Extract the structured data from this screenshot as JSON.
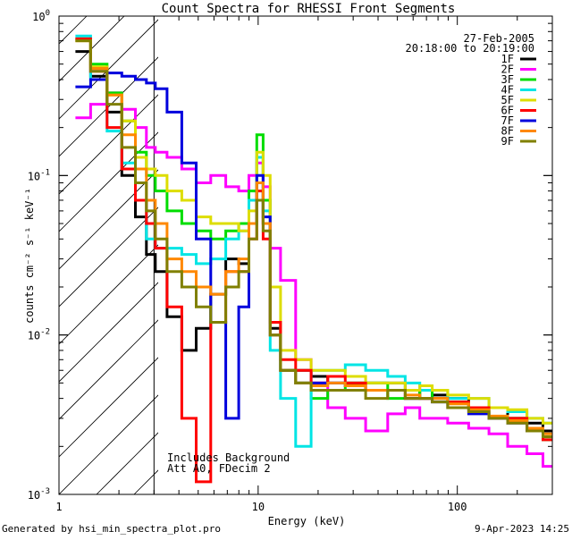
{
  "chart_data": {
    "type": "line",
    "title": "Count Spectra for RHESSI Front Segments",
    "xlabel": "Energy (keV)",
    "ylabel": "counts cm⁻² s⁻¹ keV⁻¹",
    "xscale": "log",
    "yscale": "log",
    "xlim": [
      1.0,
      300
    ],
    "ylim": [
      0.001,
      1.0
    ],
    "grid": false,
    "legend_position": "top-right",
    "x_ticks": [
      {
        "value": 1,
        "label": "1"
      },
      {
        "value": 10,
        "label": "10"
      },
      {
        "value": 100,
        "label": "100"
      }
    ],
    "y_ticks": [
      {
        "value": 1,
        "base": "10",
        "exp": "0"
      },
      {
        "value": 0.1,
        "base": "10",
        "exp": "-1"
      },
      {
        "value": 0.01,
        "base": "10",
        "exp": "-2"
      },
      {
        "value": 0.001,
        "base": "10",
        "exp": "-3"
      }
    ],
    "legend_header": [
      "27-Feb-2005",
      "20:18:00 to 20:19:00"
    ],
    "shaded_region": {
      "x_from": 1.0,
      "x_to": 3.0,
      "pattern": "diagonal-hatch"
    },
    "annotations": [
      "Includes Background",
      "Att A0, FDecim 2"
    ],
    "series": [
      {
        "name": "1F",
        "color": "#000000",
        "x": [
          1.3,
          1.6,
          1.9,
          2.25,
          2.6,
          2.9,
          3.2,
          3.8,
          4.5,
          5.3,
          6.3,
          7.5,
          8.5,
          9.5,
          10.2,
          11.0,
          12,
          14,
          17,
          20,
          25,
          30,
          40,
          50,
          60,
          70,
          80,
          100,
          130,
          160,
          200,
          250,
          290
        ],
        "y": [
          0.6,
          0.42,
          0.25,
          0.1,
          0.055,
          0.032,
          0.025,
          0.013,
          0.008,
          0.011,
          0.018,
          0.03,
          0.028,
          0.05,
          0.07,
          0.05,
          0.011,
          0.006,
          0.006,
          0.0055,
          0.005,
          0.005,
          0.005,
          0.005,
          0.0045,
          0.004,
          0.0042,
          0.004,
          0.0035,
          0.0035,
          0.003,
          0.0028,
          0.0025
        ]
      },
      {
        "name": "2F",
        "color": "#ff00ff",
        "x": [
          1.3,
          1.6,
          1.9,
          2.25,
          2.6,
          2.9,
          3.2,
          3.8,
          4.5,
          5.3,
          6.3,
          7.5,
          8.5,
          9.5,
          10.2,
          11.0,
          12,
          14,
          17,
          20,
          25,
          30,
          40,
          50,
          60,
          70,
          80,
          100,
          130,
          160,
          200,
          250,
          290
        ],
        "y": [
          0.23,
          0.28,
          0.33,
          0.26,
          0.2,
          0.15,
          0.14,
          0.13,
          0.11,
          0.09,
          0.1,
          0.085,
          0.08,
          0.1,
          0.12,
          0.085,
          0.035,
          0.022,
          0.007,
          0.005,
          0.0035,
          0.003,
          0.0025,
          0.0032,
          0.0035,
          0.003,
          0.003,
          0.0028,
          0.0026,
          0.0024,
          0.002,
          0.0018,
          0.0015
        ]
      },
      {
        "name": "3F",
        "color": "#00dd00",
        "x": [
          1.3,
          1.6,
          1.9,
          2.25,
          2.6,
          2.9,
          3.2,
          3.8,
          4.5,
          5.3,
          6.3,
          7.5,
          8.5,
          9.5,
          10.2,
          11.0,
          12,
          14,
          17,
          20,
          25,
          30,
          40,
          50,
          60,
          70,
          80,
          100,
          130,
          160,
          200,
          250,
          290
        ],
        "y": [
          0.72,
          0.5,
          0.33,
          0.22,
          0.14,
          0.1,
          0.08,
          0.06,
          0.05,
          0.045,
          0.04,
          0.045,
          0.05,
          0.08,
          0.18,
          0.07,
          0.012,
          0.006,
          0.005,
          0.004,
          0.0045,
          0.005,
          0.005,
          0.004,
          0.004,
          0.0045,
          0.004,
          0.0038,
          0.0035,
          0.003,
          0.003,
          0.0025,
          0.0022
        ]
      },
      {
        "name": "4F",
        "color": "#00e5e5",
        "x": [
          1.3,
          1.6,
          1.9,
          2.25,
          2.6,
          2.9,
          3.2,
          3.8,
          4.5,
          5.3,
          6.3,
          7.5,
          8.5,
          9.5,
          10.2,
          11.0,
          12,
          14,
          17,
          20,
          25,
          30,
          40,
          50,
          60,
          70,
          80,
          100,
          130,
          160,
          200,
          250,
          290
        ],
        "y": [
          0.75,
          0.4,
          0.19,
          0.12,
          0.07,
          0.04,
          0.035,
          0.035,
          0.032,
          0.028,
          0.03,
          0.04,
          0.045,
          0.07,
          0.13,
          0.06,
          0.008,
          0.004,
          0.002,
          0.006,
          0.006,
          0.0065,
          0.006,
          0.0055,
          0.005,
          0.0045,
          0.0045,
          0.004,
          0.004,
          0.0035,
          0.0033,
          0.003,
          0.0028
        ]
      },
      {
        "name": "5F",
        "color": "#dddd00",
        "x": [
          1.3,
          1.6,
          1.9,
          2.25,
          2.6,
          2.9,
          3.2,
          3.8,
          4.5,
          5.3,
          6.3,
          7.5,
          8.5,
          9.5,
          10.2,
          11.0,
          12,
          14,
          17,
          20,
          25,
          30,
          40,
          50,
          60,
          70,
          80,
          100,
          130,
          160,
          200,
          250,
          290
        ],
        "y": [
          0.7,
          0.48,
          0.32,
          0.22,
          0.13,
          0.11,
          0.1,
          0.08,
          0.07,
          0.055,
          0.05,
          0.05,
          0.045,
          0.06,
          0.14,
          0.1,
          0.02,
          0.008,
          0.007,
          0.006,
          0.006,
          0.0055,
          0.005,
          0.005,
          0.0045,
          0.0048,
          0.0045,
          0.0042,
          0.004,
          0.0035,
          0.0034,
          0.003,
          0.0028
        ]
      },
      {
        "name": "6F",
        "color": "#ff0000",
        "x": [
          1.3,
          1.6,
          1.9,
          2.25,
          2.6,
          2.9,
          3.2,
          3.8,
          4.5,
          5.3,
          6.3,
          7.5,
          8.5,
          9.5,
          10.2,
          11.0,
          12,
          14,
          17,
          20,
          25,
          30,
          40,
          50,
          60,
          70,
          80,
          100,
          130,
          160,
          200,
          250,
          290
        ],
        "y": [
          0.72,
          0.45,
          0.2,
          0.11,
          0.07,
          0.05,
          0.035,
          0.015,
          0.003,
          0.0012,
          0.012,
          0.025,
          0.025,
          0.04,
          0.08,
          0.04,
          0.012,
          0.007,
          0.006,
          0.005,
          0.0055,
          0.005,
          0.0045,
          0.0045,
          0.004,
          0.004,
          0.004,
          0.0038,
          0.0035,
          0.003,
          0.003,
          0.0025,
          0.0022
        ]
      },
      {
        "name": "7F",
        "color": "#0000dd",
        "x": [
          1.3,
          1.6,
          1.9,
          2.25,
          2.6,
          2.9,
          3.2,
          3.8,
          4.5,
          5.3,
          6.3,
          7.5,
          8.5,
          9.5,
          10.2,
          11.0,
          12,
          14,
          17,
          20,
          25,
          30,
          40,
          50,
          60,
          70,
          80,
          100,
          130,
          160,
          200,
          250,
          290
        ],
        "y": [
          0.36,
          0.4,
          0.44,
          0.42,
          0.4,
          0.38,
          0.35,
          0.25,
          0.12,
          0.04,
          0.012,
          0.003,
          0.015,
          0.05,
          0.1,
          0.055,
          0.01,
          0.006,
          0.005,
          0.005,
          0.005,
          0.0048,
          0.0045,
          0.0045,
          0.004,
          0.004,
          0.0038,
          0.0035,
          0.0032,
          0.003,
          0.0028,
          0.0025,
          0.0023
        ]
      },
      {
        "name": "8F",
        "color": "#ff8800",
        "x": [
          1.3,
          1.6,
          1.9,
          2.25,
          2.6,
          2.9,
          3.2,
          3.8,
          4.5,
          5.3,
          6.3,
          7.5,
          8.5,
          9.5,
          10.2,
          11.0,
          12,
          14,
          17,
          20,
          25,
          30,
          40,
          50,
          60,
          70,
          80,
          100,
          130,
          160,
          200,
          250,
          290
        ],
        "y": [
          0.7,
          0.47,
          0.32,
          0.18,
          0.11,
          0.07,
          0.05,
          0.03,
          0.025,
          0.02,
          0.018,
          0.025,
          0.03,
          0.05,
          0.09,
          0.05,
          0.01,
          0.006,
          0.005,
          0.0048,
          0.005,
          0.0048,
          0.0045,
          0.0045,
          0.0042,
          0.004,
          0.004,
          0.0037,
          0.0034,
          0.0031,
          0.0029,
          0.0026,
          0.0024
        ]
      },
      {
        "name": "9F",
        "color": "#808000",
        "x": [
          1.3,
          1.6,
          1.9,
          2.25,
          2.6,
          2.9,
          3.2,
          3.8,
          4.5,
          5.3,
          6.3,
          7.5,
          8.5,
          9.5,
          10.2,
          11.0,
          12,
          14,
          17,
          20,
          25,
          30,
          40,
          50,
          60,
          70,
          80,
          100,
          130,
          160,
          200,
          250,
          290
        ],
        "y": [
          0.7,
          0.45,
          0.28,
          0.15,
          0.09,
          0.06,
          0.04,
          0.025,
          0.02,
          0.015,
          0.012,
          0.02,
          0.025,
          0.04,
          0.07,
          0.045,
          0.01,
          0.006,
          0.005,
          0.0045,
          0.0045,
          0.0045,
          0.004,
          0.0045,
          0.004,
          0.004,
          0.0038,
          0.0035,
          0.0033,
          0.003,
          0.0028,
          0.0025,
          0.0023
        ]
      }
    ]
  },
  "footer": {
    "left": "Generated by hsi_min_spectra_plot.pro",
    "right": "9-Apr-2023 14:25"
  }
}
